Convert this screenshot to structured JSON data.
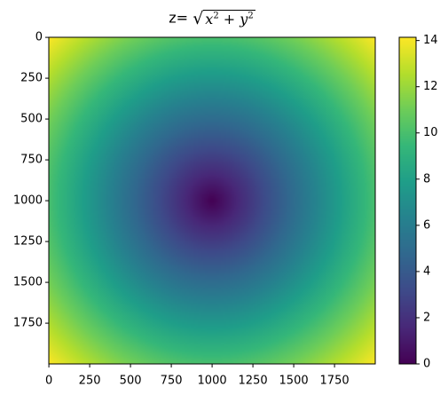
{
  "chart_data": {
    "type": "heatmap",
    "title": "z= √(x² + y²)",
    "title_prefix": "z=",
    "formula": "√(x² + y²)",
    "x_ticks": [
      0,
      250,
      500,
      750,
      1000,
      1250,
      1500,
      1750
    ],
    "y_ticks": [
      0,
      250,
      500,
      750,
      1000,
      1250,
      1500,
      1750
    ],
    "grid_size": 2000,
    "x_range": [
      -10,
      10
    ],
    "y_range": [
      -10,
      10
    ],
    "z_range": [
      0,
      14.14
    ],
    "colorbar_ticks": [
      0,
      2,
      4,
      6,
      8,
      10,
      12,
      14
    ],
    "colormap": "viridis",
    "grid": false
  }
}
